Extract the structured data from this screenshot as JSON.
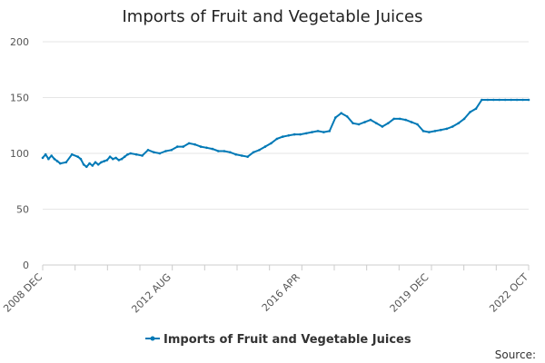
{
  "chart_data": {
    "type": "line",
    "title": "Imports of Fruit and Vegetable Juices",
    "xlabel": "",
    "ylabel": "",
    "ylim": [
      0,
      200
    ],
    "y_ticks": [
      0,
      50,
      100,
      150,
      200
    ],
    "x_tick_labels": [
      "2008 DEC",
      "2012 AUG",
      "2016 APR",
      "2019 DEC",
      "2022 OCT"
    ],
    "x_tick_months": [
      0,
      44,
      88,
      132,
      166
    ],
    "grid": true,
    "legend_placement": "bottom",
    "source_label": "Source:",
    "line_color": "#0079B6",
    "series": [
      {
        "name": "Imports of Fruit and Vegetable Juices",
        "x_months": [
          0,
          1,
          2,
          3,
          4,
          5,
          6,
          8,
          10,
          12,
          13,
          14,
          15,
          16,
          17,
          18,
          19,
          20,
          21,
          22,
          23,
          24,
          25,
          26,
          27,
          28,
          29,
          30,
          32,
          34,
          36,
          38,
          40,
          42,
          44,
          46,
          48,
          50,
          52,
          54,
          56,
          58,
          60,
          62,
          64,
          66,
          68,
          70,
          72,
          74,
          76,
          78,
          80,
          82,
          84,
          86,
          88,
          90,
          92,
          94,
          96,
          98,
          100,
          102,
          104,
          106,
          108,
          110,
          112,
          114,
          116,
          118,
          120,
          122,
          124,
          126,
          128,
          130,
          132,
          134,
          136,
          138,
          140,
          142,
          144,
          146,
          148,
          150,
          152,
          154,
          156,
          158,
          160,
          162,
          164,
          166
        ],
        "values": [
          96,
          99,
          95,
          98,
          95,
          93,
          91,
          92,
          99,
          97,
          95,
          90,
          88,
          91,
          89,
          92,
          90,
          92,
          93,
          94,
          97,
          95,
          96,
          94,
          95,
          97,
          99,
          100,
          99,
          98,
          103,
          101,
          100,
          102,
          103,
          106,
          106,
          109,
          108,
          106,
          105,
          104,
          102,
          102,
          101,
          99,
          98,
          97,
          101,
          103,
          106,
          109,
          113,
          115,
          116,
          117,
          117,
          118,
          119,
          120,
          119,
          120,
          132,
          136,
          133,
          127,
          126,
          128,
          130,
          127,
          124,
          127,
          131,
          131,
          130,
          128,
          126,
          120,
          119,
          120,
          121,
          122,
          124,
          127,
          131,
          137,
          140,
          148,
          148,
          148,
          148,
          148,
          148,
          148,
          148,
          148
        ]
      }
    ]
  }
}
